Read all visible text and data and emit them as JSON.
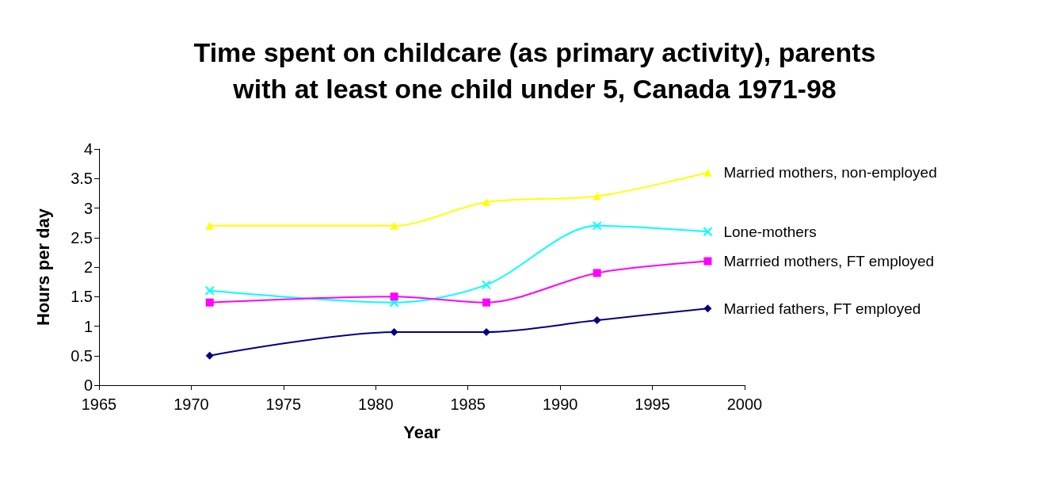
{
  "chart_data": {
    "type": "line",
    "title": "Time spent on childcare (as primary activity), parents\nwith at least one child under 5, Canada 1971-98",
    "xlabel": "Year",
    "ylabel": "Hours per day",
    "x": [
      1971,
      1981,
      1986,
      1992,
      1998
    ],
    "series": [
      {
        "name": "Married mothers, non-employed",
        "color": "#ffff00",
        "marker": "triangle",
        "values": [
          2.7,
          2.7,
          3.1,
          3.2,
          3.6
        ]
      },
      {
        "name": "Lone-mothers",
        "color": "#00ffff",
        "marker": "cross",
        "values": [
          1.6,
          1.4,
          1.7,
          2.7,
          2.6
        ]
      },
      {
        "name": "Marrried mothers, FT employed",
        "color": "#ff00ff",
        "marker": "square",
        "values": [
          1.4,
          1.5,
          1.4,
          1.9,
          2.1
        ]
      },
      {
        "name": "Married fathers, FT employed",
        "color": "#000080",
        "marker": "diamond",
        "values": [
          0.5,
          0.9,
          0.9,
          1.1,
          1.3
        ]
      }
    ],
    "xlim": [
      1965,
      2000
    ],
    "xticks": [
      1965,
      1970,
      1975,
      1980,
      1985,
      1990,
      1995,
      2000
    ],
    "ylim": [
      0,
      4
    ],
    "yticks": [
      0,
      0.5,
      1,
      1.5,
      2,
      2.5,
      3,
      3.5,
      4
    ],
    "grid": false,
    "legend": false,
    "line_style": "solid"
  }
}
